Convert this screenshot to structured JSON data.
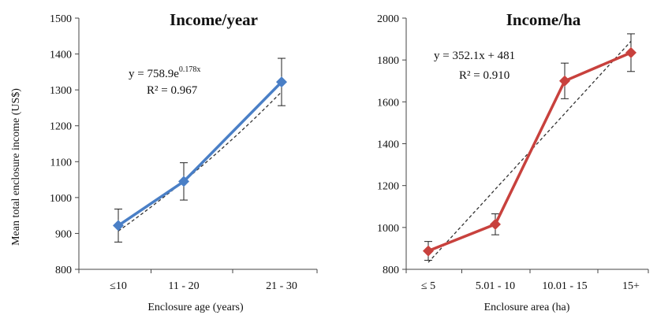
{
  "colors": {
    "left_series": "#4a7fc6",
    "right_series": "#c8413d",
    "trend": "#333333",
    "axis": "#444444"
  },
  "chart_data": [
    {
      "type": "line",
      "title": "Income/year",
      "xlabel": "Enclosure age (years)",
      "ylabel": "Mean total enclosure income (US$)",
      "categories": [
        "≤10",
        "11 - 20",
        "21 - 30"
      ],
      "series": [
        {
          "values": [
            922,
            1045,
            1322
          ],
          "error": [
            46,
            52,
            66
          ]
        }
      ],
      "trendline": {
        "type": "exponential",
        "equation_main": "y = 758.9e",
        "equation_exp": "0.178x",
        "r2": "R² = 0.967",
        "a": 758.9,
        "b": 0.178
      },
      "ylim": [
        800,
        1500
      ],
      "yticks": [
        "800",
        "900",
        "1000",
        "1100",
        "1200",
        "1300",
        "1400",
        "1500"
      ],
      "grid": false,
      "legend": "none"
    },
    {
      "type": "line",
      "title": "Income/ha",
      "xlabel": "Enclosure area (ha)",
      "ylabel": "",
      "categories": [
        "≤ 5",
        "5.01 - 10",
        "10.01 - 15",
        "15+"
      ],
      "series": [
        {
          "values": [
            888,
            1015,
            1700,
            1835
          ],
          "error": [
            45,
            50,
            85,
            90
          ]
        }
      ],
      "trendline": {
        "type": "linear",
        "equation_main": "y = 352.1x + 481",
        "equation_exp": "",
        "r2": "R² = 0.910",
        "slope": 352.1,
        "intercept": 481
      },
      "ylim": [
        800,
        2000
      ],
      "yticks": [
        "800",
        "1000",
        "1200",
        "1400",
        "1600",
        "1800",
        "2000"
      ],
      "grid": false,
      "legend": "none"
    }
  ]
}
